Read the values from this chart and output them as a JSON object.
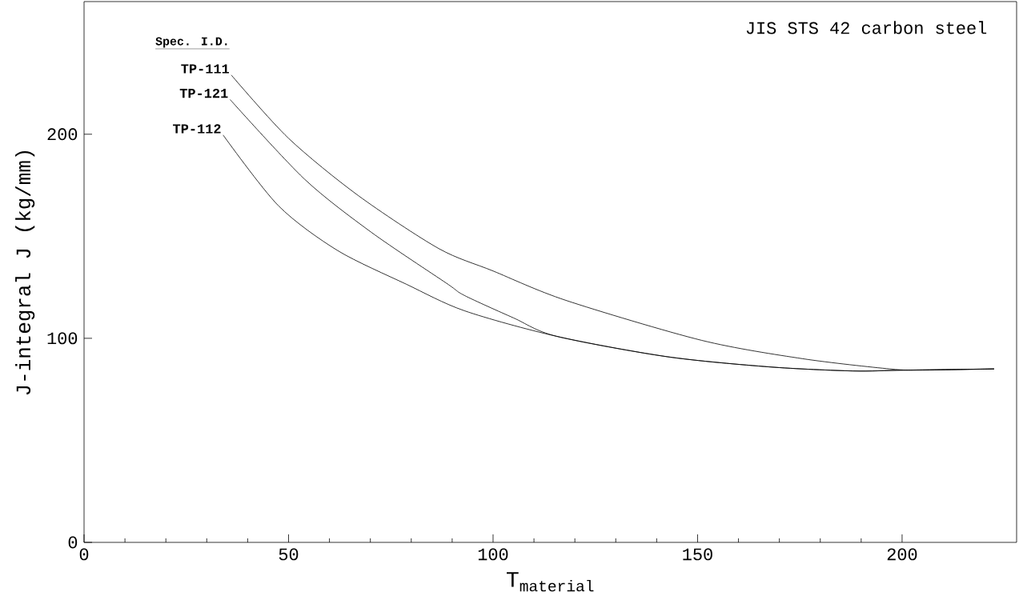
{
  "chart_data": {
    "type": "line",
    "xlabel": "T$_{material}$",
    "ylabel": "J-integral  J (kg/mm)",
    "legend_title": "Spec. I.D.",
    "annotations": [
      "JIS STS 42 carbon steel"
    ],
    "xlim": [
      0,
      228
    ],
    "ylim": [
      0,
      265
    ],
    "xticks": [
      0,
      50,
      100,
      150,
      200
    ],
    "yticks": [
      0,
      100,
      200
    ],
    "marker": "none",
    "line_style": "solid",
    "grid": false,
    "series": [
      {
        "name": "TP-111",
        "color": "#000000",
        "x": [
          36,
          50,
          67,
          86.7,
          100,
          117.8,
          151,
          175.7,
          197,
          205,
          222.5
        ],
        "values": [
          229,
          198,
          170,
          144,
          133,
          118.6,
          99,
          90,
          85,
          84.4,
          85
        ]
      },
      {
        "name": "TP-121",
        "color": "#000000",
        "x": [
          35.7,
          53.9,
          70.2,
          88.6,
          93,
          105,
          115.5,
          142.5,
          167.5,
          188,
          200.4,
          222.5
        ],
        "values": [
          217,
          178,
          152,
          127,
          121,
          110,
          101,
          91,
          86,
          84,
          84.4,
          85
        ]
      },
      {
        "name": "TP-112",
        "color": "#000000",
        "x": [
          34,
          47.5,
          62,
          78.8,
          93,
          115.5,
          142.5,
          167.5,
          188,
          200.4,
          222.5
        ],
        "values": [
          199.6,
          165,
          143,
          126.5,
          113.5,
          101,
          91,
          86,
          84,
          84.4,
          85
        ]
      }
    ]
  }
}
